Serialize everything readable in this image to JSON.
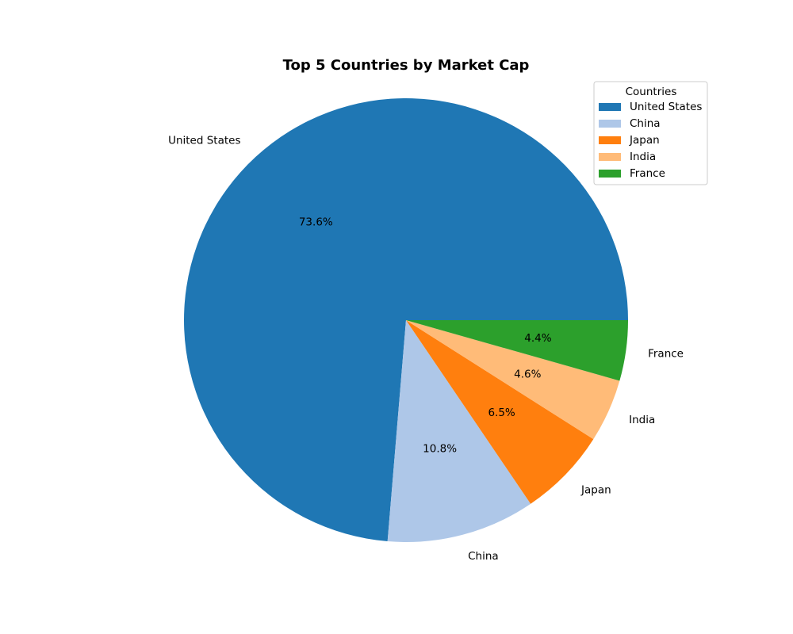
{
  "chart_data": {
    "type": "pie",
    "title": "Top 5 Countries by Market Cap",
    "categories": [
      "United States",
      "China",
      "Japan",
      "India",
      "France"
    ],
    "percent_labels": [
      "73.6%",
      "10.8%",
      "6.5%",
      "4.6%",
      "4.4%"
    ],
    "values": [
      73.6,
      10.8,
      6.5,
      4.6,
      4.4
    ],
    "colors": [
      "#1f77b4",
      "#aec7e8",
      "#ff7f0e",
      "#ffbb78",
      "#2ca02c"
    ],
    "start_angle_deg": 0,
    "direction": "counterclockwise",
    "legend": {
      "title": "Countries",
      "placement": "upper-right"
    }
  }
}
